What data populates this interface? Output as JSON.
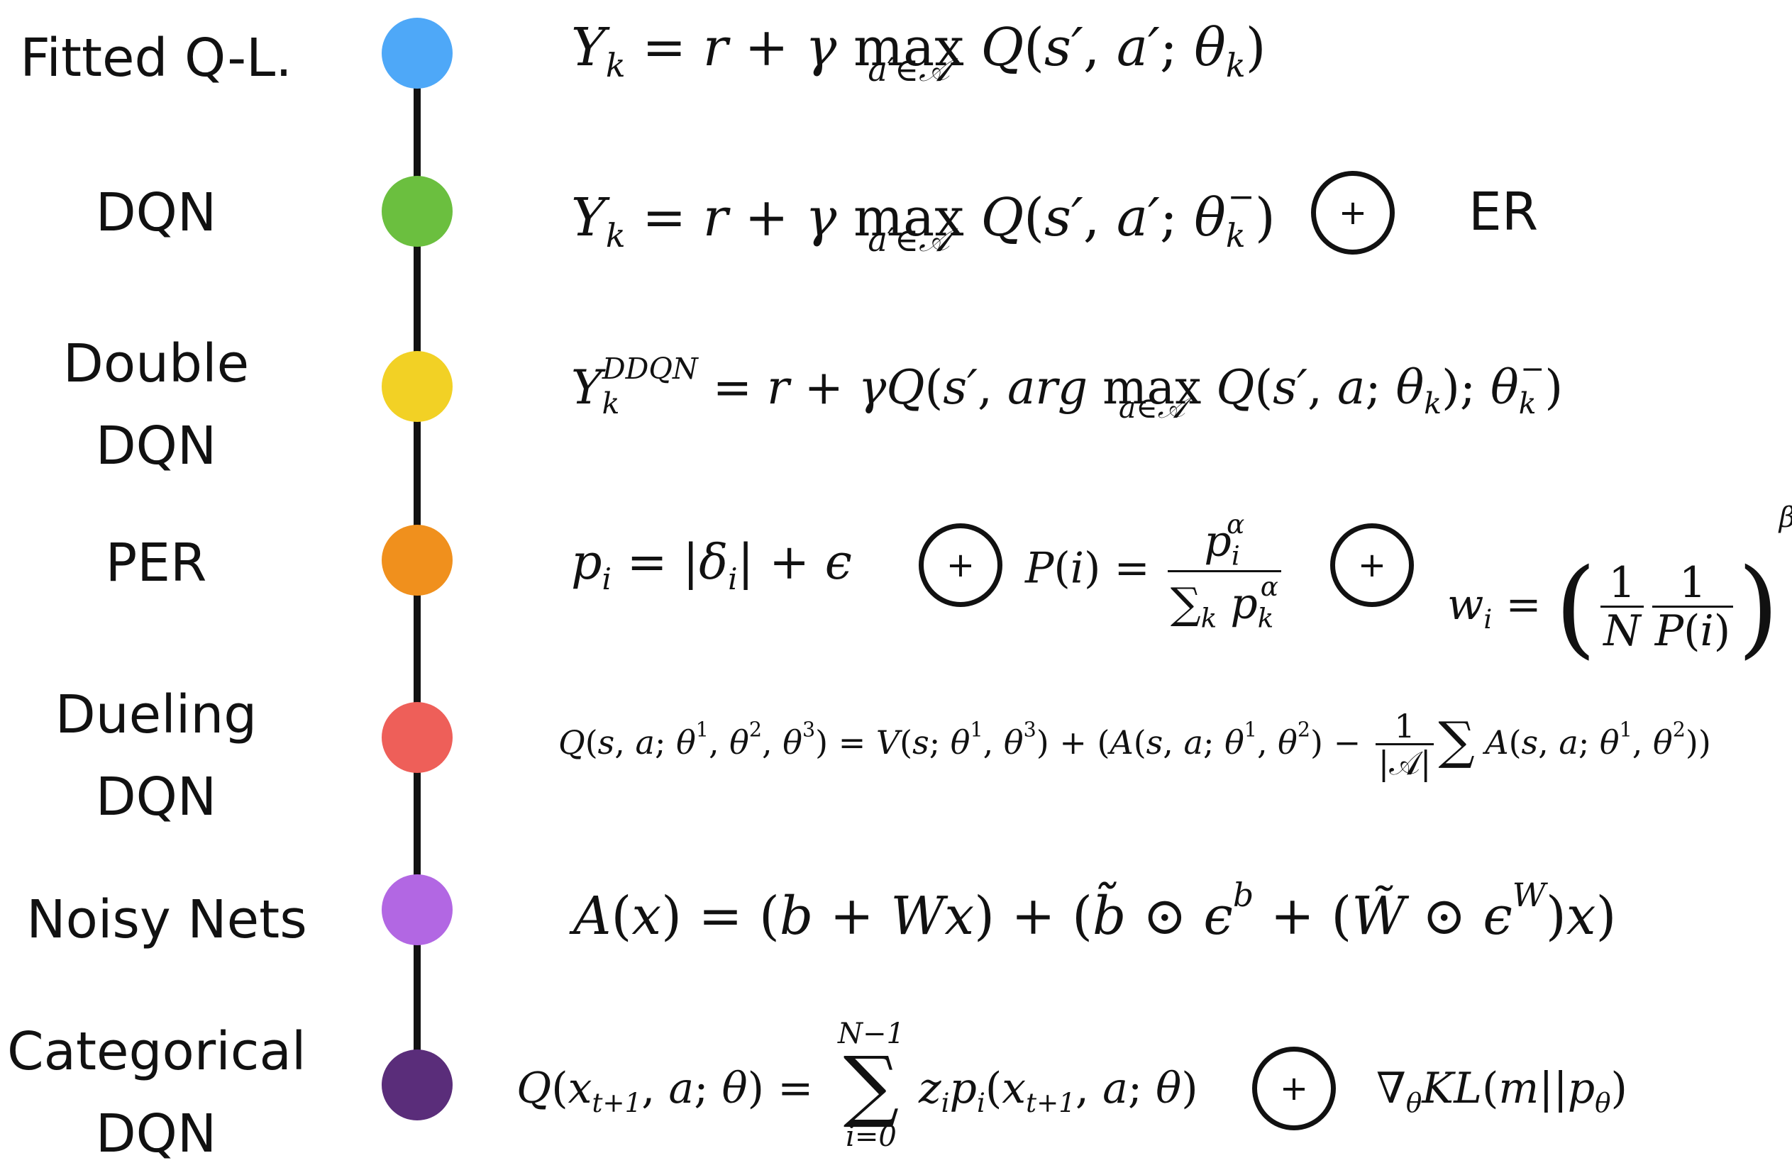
{
  "rows": [
    {
      "label_lines": [
        "Fitted Q-L."
      ],
      "color": "#4EA8F8"
    },
    {
      "label_lines": [
        "DQN"
      ],
      "color": "#6BBF3F",
      "extra_text": "ER"
    },
    {
      "label_lines": [
        "Double",
        "DQN"
      ],
      "color": "#F2D125"
    },
    {
      "label_lines": [
        "PER"
      ],
      "color": "#F0901D"
    },
    {
      "label_lines": [
        "Dueling",
        "DQN"
      ],
      "color": "#EE5F59"
    },
    {
      "label_lines": [
        "Noisy Nets"
      ],
      "color": "#B267E3"
    },
    {
      "label_lines": [
        "Categorical",
        "DQN"
      ],
      "color": "#5A2D7A"
    }
  ],
  "connector_symbol": "+",
  "icons": [
    "circled-plus-icon"
  ]
}
